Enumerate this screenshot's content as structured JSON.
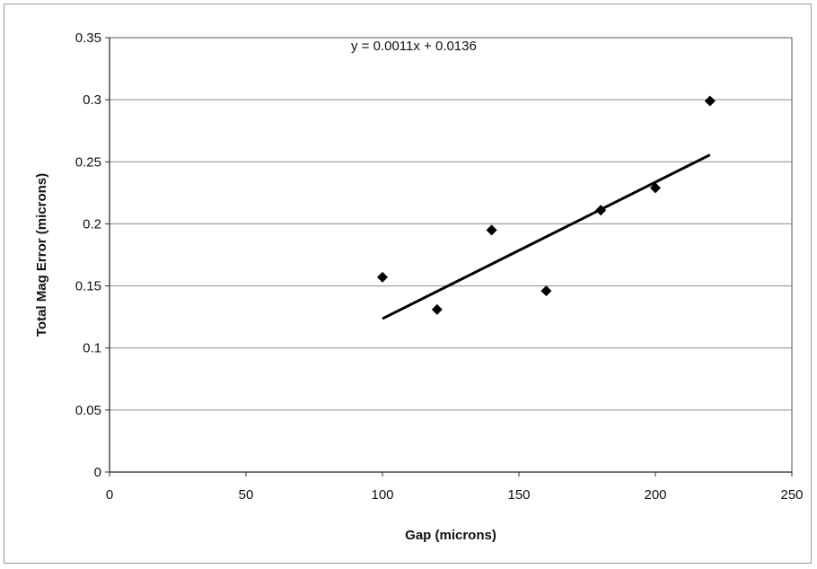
{
  "chart_data": {
    "type": "scatter",
    "title": "",
    "xlabel": "Gap (microns)",
    "ylabel": "Total Mag Error (microns)",
    "xlim": [
      0,
      250
    ],
    "ylim": [
      0,
      0.35
    ],
    "xticks": [
      0,
      50,
      100,
      150,
      200,
      250
    ],
    "yticks": [
      0,
      0.05,
      0.1,
      0.15,
      0.2,
      0.25,
      0.3,
      0.35
    ],
    "xtick_labels": [
      "0",
      "50",
      "100",
      "150",
      "200",
      "250"
    ],
    "ytick_labels": [
      "0",
      "0.05",
      "0.1",
      "0.15",
      "0.2",
      "0.25",
      "0.3",
      "0.35"
    ],
    "grid": "horizontal",
    "legend": "none",
    "marker": "diamond",
    "marker_color": "#000000",
    "series": [
      {
        "x": [
          100,
          120,
          140,
          160,
          180,
          200,
          220
        ],
        "y": [
          0.157,
          0.131,
          0.195,
          0.146,
          0.211,
          0.229,
          0.299
        ]
      }
    ],
    "trendline": {
      "equation": "y = 0.0011x + 0.0136",
      "slope": 0.0011,
      "intercept": 0.0136,
      "x_range": [
        100,
        220
      ]
    }
  }
}
